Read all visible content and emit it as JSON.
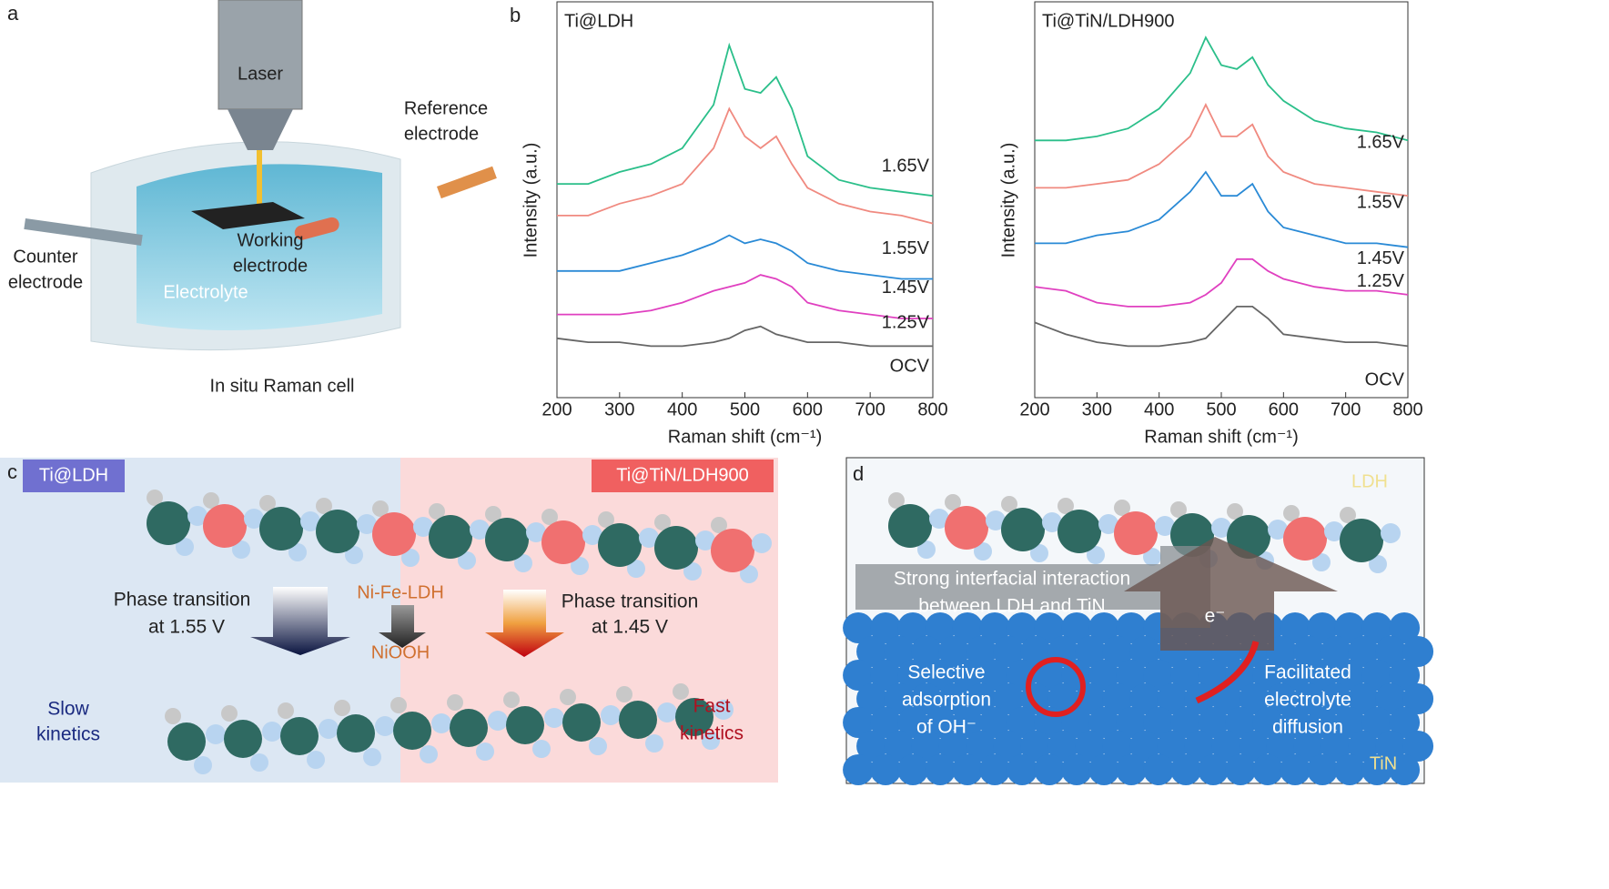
{
  "panel_labels": [
    "a",
    "b",
    "c",
    "d"
  ],
  "panel_a": {
    "laser": "Laser",
    "reference": [
      "Reference",
      "electrode"
    ],
    "counter": [
      "Counter",
      "electrode"
    ],
    "working": [
      "Working",
      "electrode"
    ],
    "electrolyte": "Electrolyte",
    "caption": "In situ Raman cell"
  },
  "chart_data": [
    {
      "type": "line",
      "title": "Ti@LDH",
      "xlabel": "Raman shift (cm⁻¹)",
      "ylabel": "Intensity (a.u.)",
      "x": [
        200,
        250,
        300,
        350,
        400,
        450,
        475,
        500,
        525,
        550,
        575,
        600,
        650,
        700,
        750,
        800
      ],
      "xlim": [
        200,
        800
      ],
      "xticks": [
        200,
        300,
        400,
        500,
        600,
        700,
        800
      ],
      "ylim": [
        0,
        10
      ],
      "series": [
        {
          "name": "1.65V",
          "color": "#2bbf8a",
          "values": [
            5.4,
            5.4,
            5.7,
            5.9,
            6.3,
            7.4,
            8.9,
            7.8,
            7.7,
            8.1,
            7.3,
            6.1,
            5.5,
            5.3,
            5.2,
            5.1
          ]
        },
        {
          "name": "1.55V",
          "color": "#f08a80",
          "values": [
            4.6,
            4.6,
            4.9,
            5.1,
            5.4,
            6.3,
            7.3,
            6.6,
            6.3,
            6.6,
            5.9,
            5.3,
            4.9,
            4.7,
            4.6,
            4.4
          ]
        },
        {
          "name": "1.45V",
          "color": "#2a8ad6",
          "values": [
            3.2,
            3.2,
            3.2,
            3.4,
            3.6,
            3.9,
            4.1,
            3.9,
            4.0,
            3.9,
            3.7,
            3.4,
            3.2,
            3.1,
            3.0,
            3.0
          ]
        },
        {
          "name": "1.25V",
          "color": "#e040c0",
          "values": [
            2.1,
            2.1,
            2.1,
            2.2,
            2.4,
            2.7,
            2.8,
            2.9,
            3.1,
            3.0,
            2.8,
            2.4,
            2.2,
            2.1,
            2.0,
            2.0
          ]
        },
        {
          "name": "OCV",
          "color": "#666666",
          "values": [
            1.5,
            1.4,
            1.4,
            1.3,
            1.3,
            1.4,
            1.5,
            1.7,
            1.8,
            1.6,
            1.5,
            1.4,
            1.4,
            1.3,
            1.3,
            1.3
          ]
        }
      ]
    },
    {
      "type": "line",
      "title": "Ti@TiN/LDH900",
      "xlabel": "Raman shift (cm⁻¹)",
      "ylabel": "Intensity (a.u.)",
      "x": [
        200,
        250,
        300,
        350,
        400,
        450,
        475,
        500,
        525,
        550,
        575,
        600,
        650,
        700,
        750,
        800
      ],
      "xlim": [
        200,
        800
      ],
      "xticks": [
        200,
        300,
        400,
        500,
        600,
        700,
        800
      ],
      "ylim": [
        0,
        10
      ],
      "series": [
        {
          "name": "1.65V",
          "color": "#2bbf8a",
          "values": [
            6.5,
            6.5,
            6.6,
            6.8,
            7.3,
            8.2,
            9.1,
            8.4,
            8.3,
            8.6,
            7.9,
            7.5,
            7.0,
            6.8,
            6.7,
            6.5
          ]
        },
        {
          "name": "1.55V",
          "color": "#f08a80",
          "values": [
            5.3,
            5.3,
            5.4,
            5.5,
            5.9,
            6.6,
            7.4,
            6.6,
            6.6,
            6.9,
            6.1,
            5.7,
            5.4,
            5.3,
            5.2,
            5.1
          ]
        },
        {
          "name": "1.45V",
          "color": "#2a8ad6",
          "values": [
            3.9,
            3.9,
            4.1,
            4.2,
            4.5,
            5.2,
            5.7,
            5.1,
            5.1,
            5.4,
            4.7,
            4.3,
            4.1,
            3.9,
            3.9,
            3.8
          ]
        },
        {
          "name": "1.25V",
          "color": "#e040c0",
          "values": [
            2.8,
            2.7,
            2.4,
            2.3,
            2.3,
            2.4,
            2.6,
            2.9,
            3.5,
            3.5,
            3.2,
            3.0,
            2.8,
            2.7,
            2.7,
            2.6
          ]
        },
        {
          "name": "OCV",
          "color": "#666666",
          "values": [
            1.9,
            1.6,
            1.4,
            1.3,
            1.3,
            1.4,
            1.5,
            1.9,
            2.3,
            2.3,
            2.0,
            1.6,
            1.5,
            1.4,
            1.4,
            1.3
          ]
        }
      ]
    }
  ],
  "panel_c": {
    "left_tag": "Ti@LDH",
    "right_tag": "Ti@TiN/LDH900",
    "left_transition": [
      "Phase transition",
      "at 1.55 V"
    ],
    "reactant": "Ni-Fe-LDH",
    "product": "NiOOH",
    "right_transition": [
      "Phase transition",
      "at 1.45 V"
    ],
    "slow": [
      "Slow",
      "kinetics"
    ],
    "fast": [
      "Fast",
      "kinetics"
    ]
  },
  "panel_d": {
    "ldh": "LDH",
    "interaction": [
      "Strong interfacial interaction",
      "between LDH and TiN"
    ],
    "electron": "e⁻",
    "adsorption": [
      "Selective",
      "adsorption",
      "of OH⁻"
    ],
    "diffusion": [
      "Facilitated",
      "electrolyte",
      "diffusion"
    ],
    "tin": "TiN"
  }
}
